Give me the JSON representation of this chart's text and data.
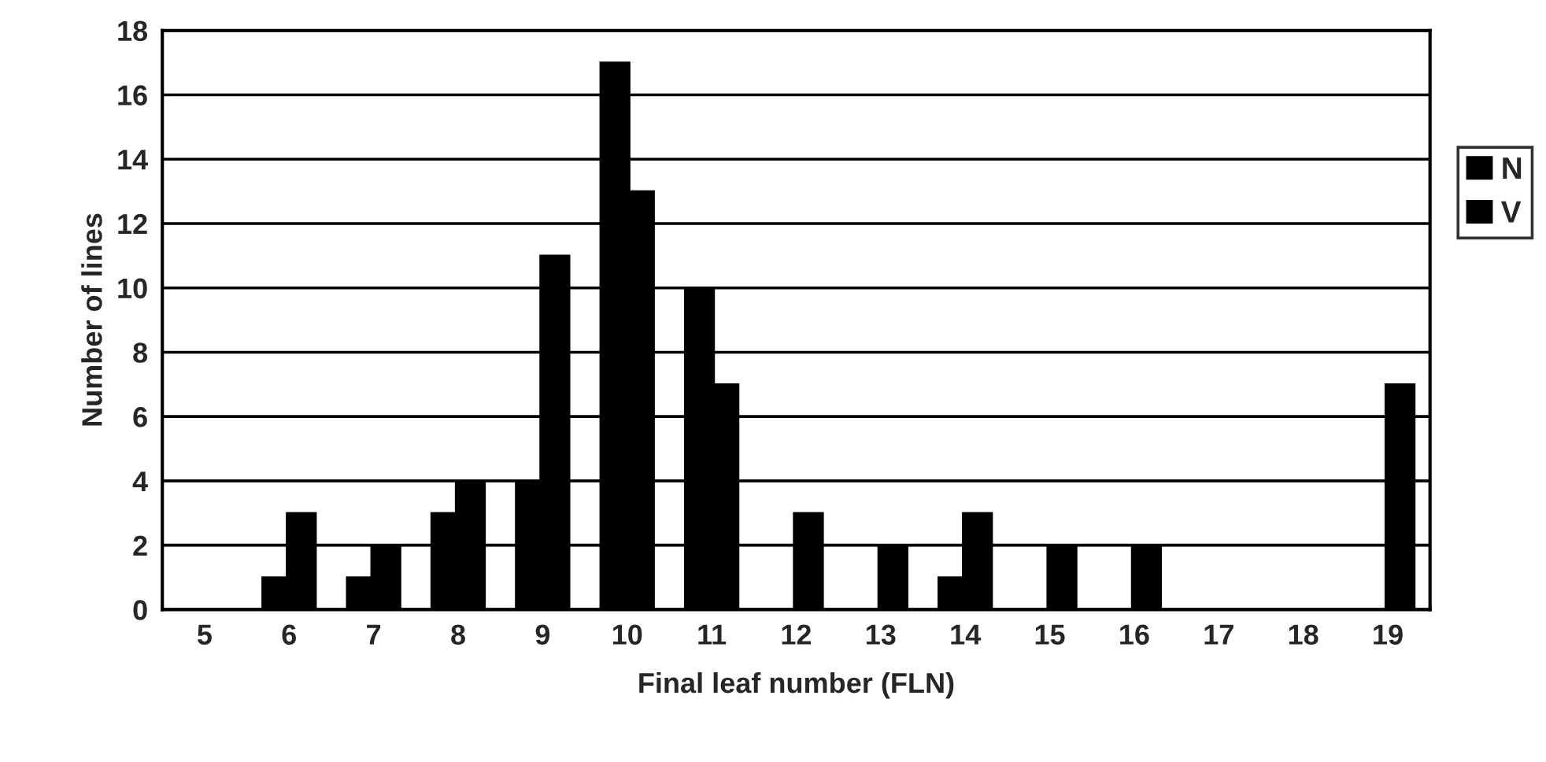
{
  "chart_data": {
    "type": "bar",
    "xlabel": "Final leaf number (FLN)",
    "ylabel": "Number of lines",
    "categories": [
      "5",
      "6",
      "7",
      "8",
      "9",
      "10",
      "11",
      "12",
      "13",
      "14",
      "15",
      "16",
      "17",
      "18",
      "19"
    ],
    "series": [
      {
        "name": "N",
        "color": "#000000",
        "values": [
          0,
          1,
          1,
          3,
          4,
          17,
          10,
          0,
          0,
          1,
          0,
          0,
          0,
          0,
          0
        ]
      },
      {
        "name": "V",
        "color": "#000000",
        "values": [
          0,
          3,
          2,
          4,
          11,
          13,
          7,
          3,
          2,
          3,
          2,
          2,
          0,
          0,
          7
        ]
      }
    ],
    "ylim": [
      0,
      18
    ],
    "yticks": [
      0,
      2,
      4,
      6,
      8,
      10,
      12,
      14,
      16,
      18
    ],
    "grid": "y",
    "legend": "right"
  }
}
